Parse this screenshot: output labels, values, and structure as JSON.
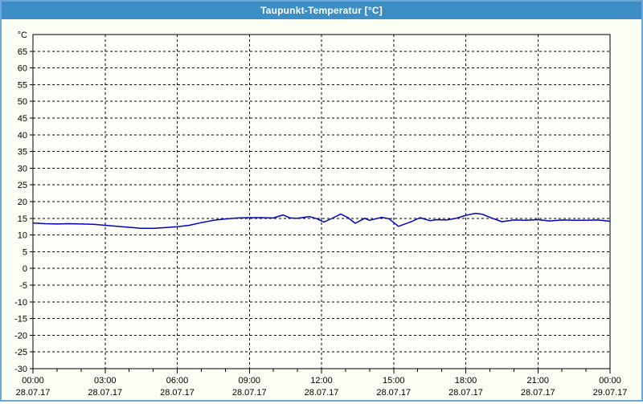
{
  "window": {
    "title": "Taupunkt-Temperatur [°C]"
  },
  "colors": {
    "titlebar": "#3e8ec6",
    "titlebar_text": "#ffffff",
    "window_border": "#6ba7d8",
    "window_bg": "#fbfef2",
    "plot_bg": "#fefffa",
    "plot_border": "#000000",
    "grid": "#000000",
    "axis_text": "#000000",
    "series_line": "#0000c8"
  },
  "chart_data": {
    "type": "line",
    "title": "Taupunkt-Temperatur [°C]",
    "unit_label": "°C",
    "ylim": [
      -30,
      70
    ],
    "ytick_step": 5,
    "ytick_labels": [
      "65",
      "60",
      "55",
      "50",
      "45",
      "40",
      "35",
      "30",
      "25",
      "20",
      "15",
      "10",
      "5",
      "0",
      "-5",
      "-10",
      "-15",
      "-20",
      "-25",
      "-30"
    ],
    "ytick_values": [
      65,
      60,
      55,
      50,
      45,
      40,
      35,
      30,
      25,
      20,
      15,
      10,
      5,
      0,
      -5,
      -10,
      -15,
      -20,
      -25,
      -30
    ],
    "xlim_hours": [
      0,
      24
    ],
    "x_major_step_hours": 3,
    "x_minor_step_hours": 1,
    "grid": "dashed",
    "legend": "none",
    "xticks": [
      {
        "hour": 0,
        "time": "00:00",
        "date": "28.07.17"
      },
      {
        "hour": 3,
        "time": "03:00",
        "date": "28.07.17"
      },
      {
        "hour": 6,
        "time": "06:00",
        "date": "28.07.17"
      },
      {
        "hour": 9,
        "time": "09:00",
        "date": "28.07.17"
      },
      {
        "hour": 12,
        "time": "12:00",
        "date": "28.07.17"
      },
      {
        "hour": 15,
        "time": "15:00",
        "date": "28.07.17"
      },
      {
        "hour": 18,
        "time": "18:00",
        "date": "28.07.17"
      },
      {
        "hour": 21,
        "time": "21:00",
        "date": "28.07.17"
      },
      {
        "hour": 24,
        "time": "00:00",
        "date": "29.07.17"
      }
    ],
    "series": [
      {
        "name": "Taupunkt-Temperatur",
        "color": "#0000c8",
        "points": [
          [
            0.0,
            13.6
          ],
          [
            0.5,
            13.4
          ],
          [
            1.0,
            13.3
          ],
          [
            1.5,
            13.4
          ],
          [
            2.0,
            13.3
          ],
          [
            2.5,
            13.2
          ],
          [
            3.0,
            12.9
          ],
          [
            3.5,
            12.6
          ],
          [
            4.0,
            12.3
          ],
          [
            4.5,
            12.0
          ],
          [
            5.0,
            12.0
          ],
          [
            5.5,
            12.2
          ],
          [
            6.0,
            12.5
          ],
          [
            6.5,
            12.9
          ],
          [
            7.0,
            13.7
          ],
          [
            7.5,
            14.4
          ],
          [
            8.0,
            14.8
          ],
          [
            8.5,
            15.1
          ],
          [
            9.0,
            15.2
          ],
          [
            9.5,
            15.2
          ],
          [
            10.0,
            15.1
          ],
          [
            10.4,
            16.0
          ],
          [
            10.7,
            15.1
          ],
          [
            11.0,
            15.0
          ],
          [
            11.5,
            15.5
          ],
          [
            11.8,
            14.9
          ],
          [
            12.1,
            13.9
          ],
          [
            12.5,
            15.2
          ],
          [
            12.8,
            16.3
          ],
          [
            13.1,
            15.2
          ],
          [
            13.4,
            13.5
          ],
          [
            13.8,
            15.0
          ],
          [
            14.0,
            14.4
          ],
          [
            14.5,
            15.3
          ],
          [
            14.8,
            14.9
          ],
          [
            15.2,
            12.6
          ],
          [
            15.7,
            13.9
          ],
          [
            16.1,
            15.2
          ],
          [
            16.5,
            14.3
          ],
          [
            16.8,
            14.6
          ],
          [
            17.2,
            14.5
          ],
          [
            17.6,
            15.0
          ],
          [
            18.0,
            15.9
          ],
          [
            18.4,
            16.5
          ],
          [
            18.7,
            16.2
          ],
          [
            19.0,
            15.3
          ],
          [
            19.5,
            14.0
          ],
          [
            20.0,
            14.5
          ],
          [
            20.5,
            14.4
          ],
          [
            21.0,
            14.6
          ],
          [
            21.5,
            14.2
          ],
          [
            22.0,
            14.5
          ],
          [
            22.5,
            14.4
          ],
          [
            23.0,
            14.4
          ],
          [
            23.5,
            14.5
          ],
          [
            24.0,
            14.1
          ]
        ]
      }
    ]
  }
}
